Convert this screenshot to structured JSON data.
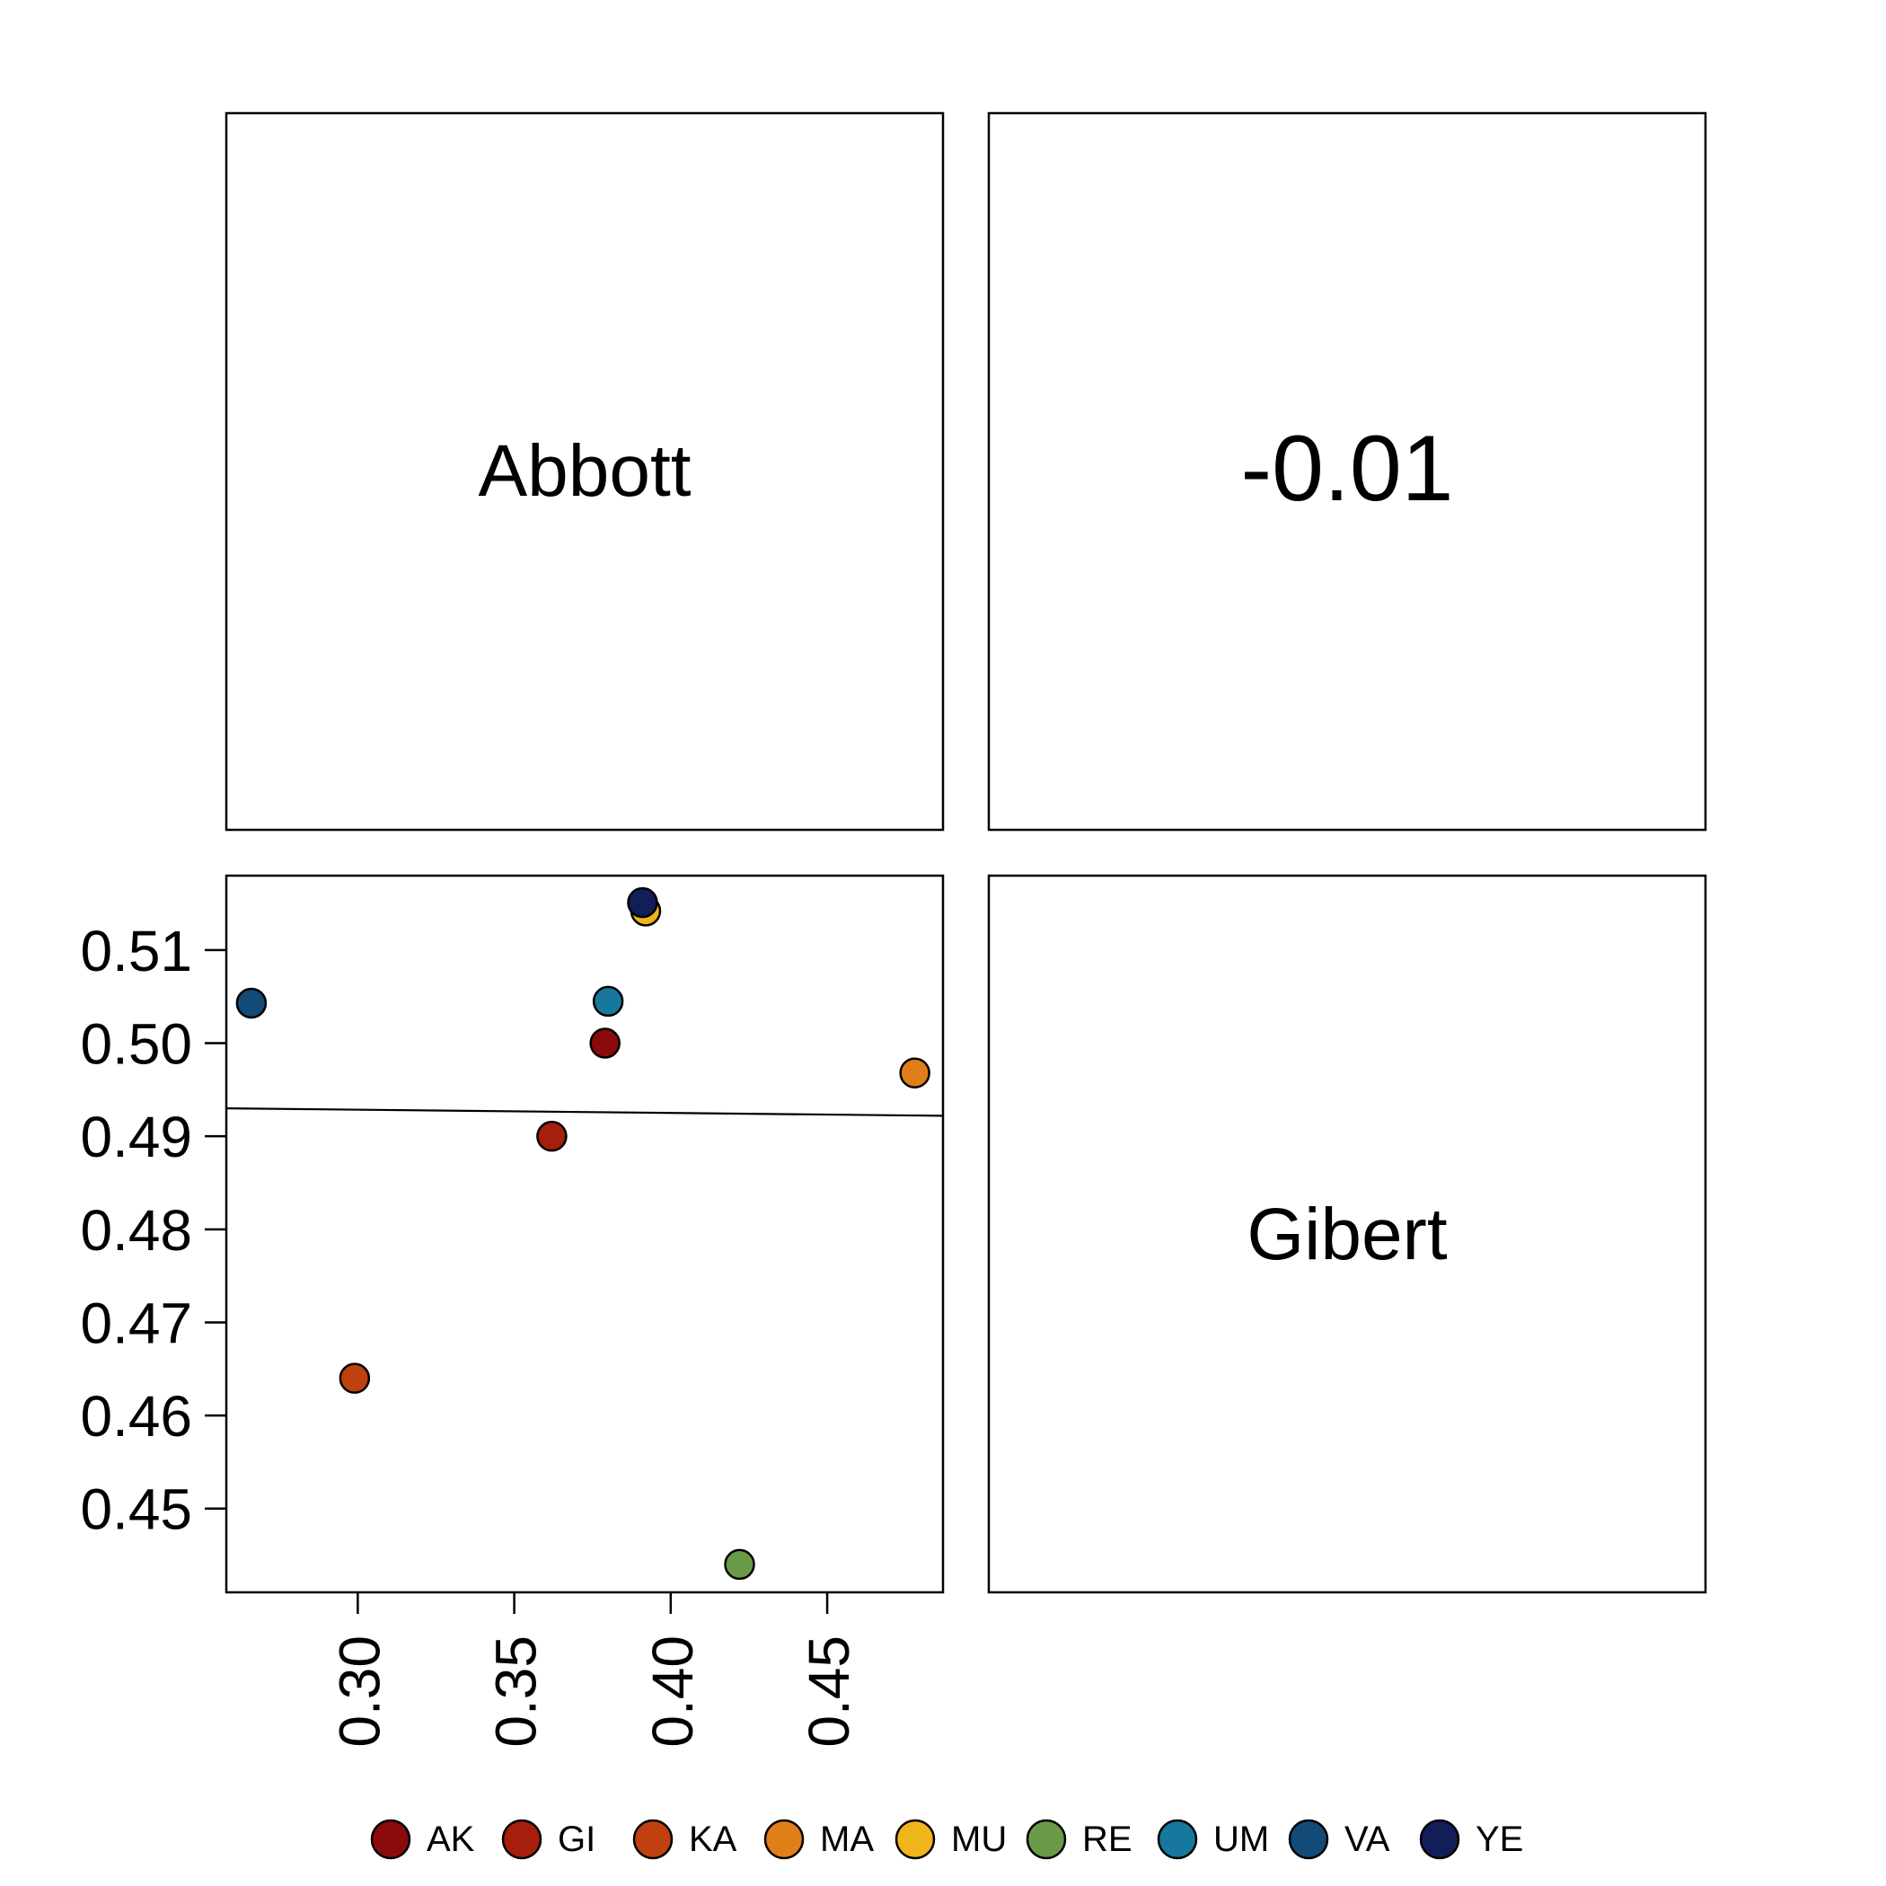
{
  "chart_data": {
    "type": "scatter",
    "kind": "pairs-matrix",
    "variables": [
      "Abbott",
      "Gibert"
    ],
    "correlation_text": "-0.01",
    "x_variable": "Abbott",
    "y_variable": "Gibert",
    "xlim": [
      0.258,
      0.487
    ],
    "ylim": [
      0.441,
      0.518
    ],
    "x_ticks": [
      "0.30",
      "0.35",
      "0.40",
      "0.45"
    ],
    "y_ticks": [
      "0.45",
      "0.46",
      "0.47",
      "0.48",
      "0.49",
      "0.50",
      "0.51"
    ],
    "points": [
      {
        "group": "AK",
        "x": 0.379,
        "y": 0.5,
        "color": "#8B0A0A"
      },
      {
        "group": "GI",
        "x": 0.362,
        "y": 0.49,
        "color": "#A61E0C"
      },
      {
        "group": "KA",
        "x": 0.299,
        "y": 0.464,
        "color": "#C0400F"
      },
      {
        "group": "MA",
        "x": 0.478,
        "y": 0.4968,
        "color": "#E07F19"
      },
      {
        "group": "MU",
        "x": 0.392,
        "y": 0.5142,
        "color": "#F0B41C"
      },
      {
        "group": "RE",
        "x": 0.422,
        "y": 0.444,
        "color": "#6A9A48"
      },
      {
        "group": "UM",
        "x": 0.38,
        "y": 0.5045,
        "color": "#17779D"
      },
      {
        "group": "VA",
        "x": 0.266,
        "y": 0.5043,
        "color": "#124A78"
      },
      {
        "group": "YE",
        "x": 0.391,
        "y": 0.5151,
        "color": "#121E58"
      }
    ],
    "fit_line": {
      "x": [
        0.258,
        0.487
      ],
      "y": [
        0.493,
        0.4922
      ]
    },
    "legend": {
      "placement": "bottom",
      "entries": [
        {
          "label": "AK",
          "color": "#8B0A0A"
        },
        {
          "label": "GI",
          "color": "#A61E0C"
        },
        {
          "label": "KA",
          "color": "#C0400F"
        },
        {
          "label": "MA",
          "color": "#E07F19"
        },
        {
          "label": "MU",
          "color": "#F0B41C"
        },
        {
          "label": "RE",
          "color": "#6A9A48"
        },
        {
          "label": "UM",
          "color": "#17779D"
        },
        {
          "label": "VA",
          "color": "#124A78"
        },
        {
          "label": "YE",
          "color": "#121E58"
        }
      ]
    }
  }
}
